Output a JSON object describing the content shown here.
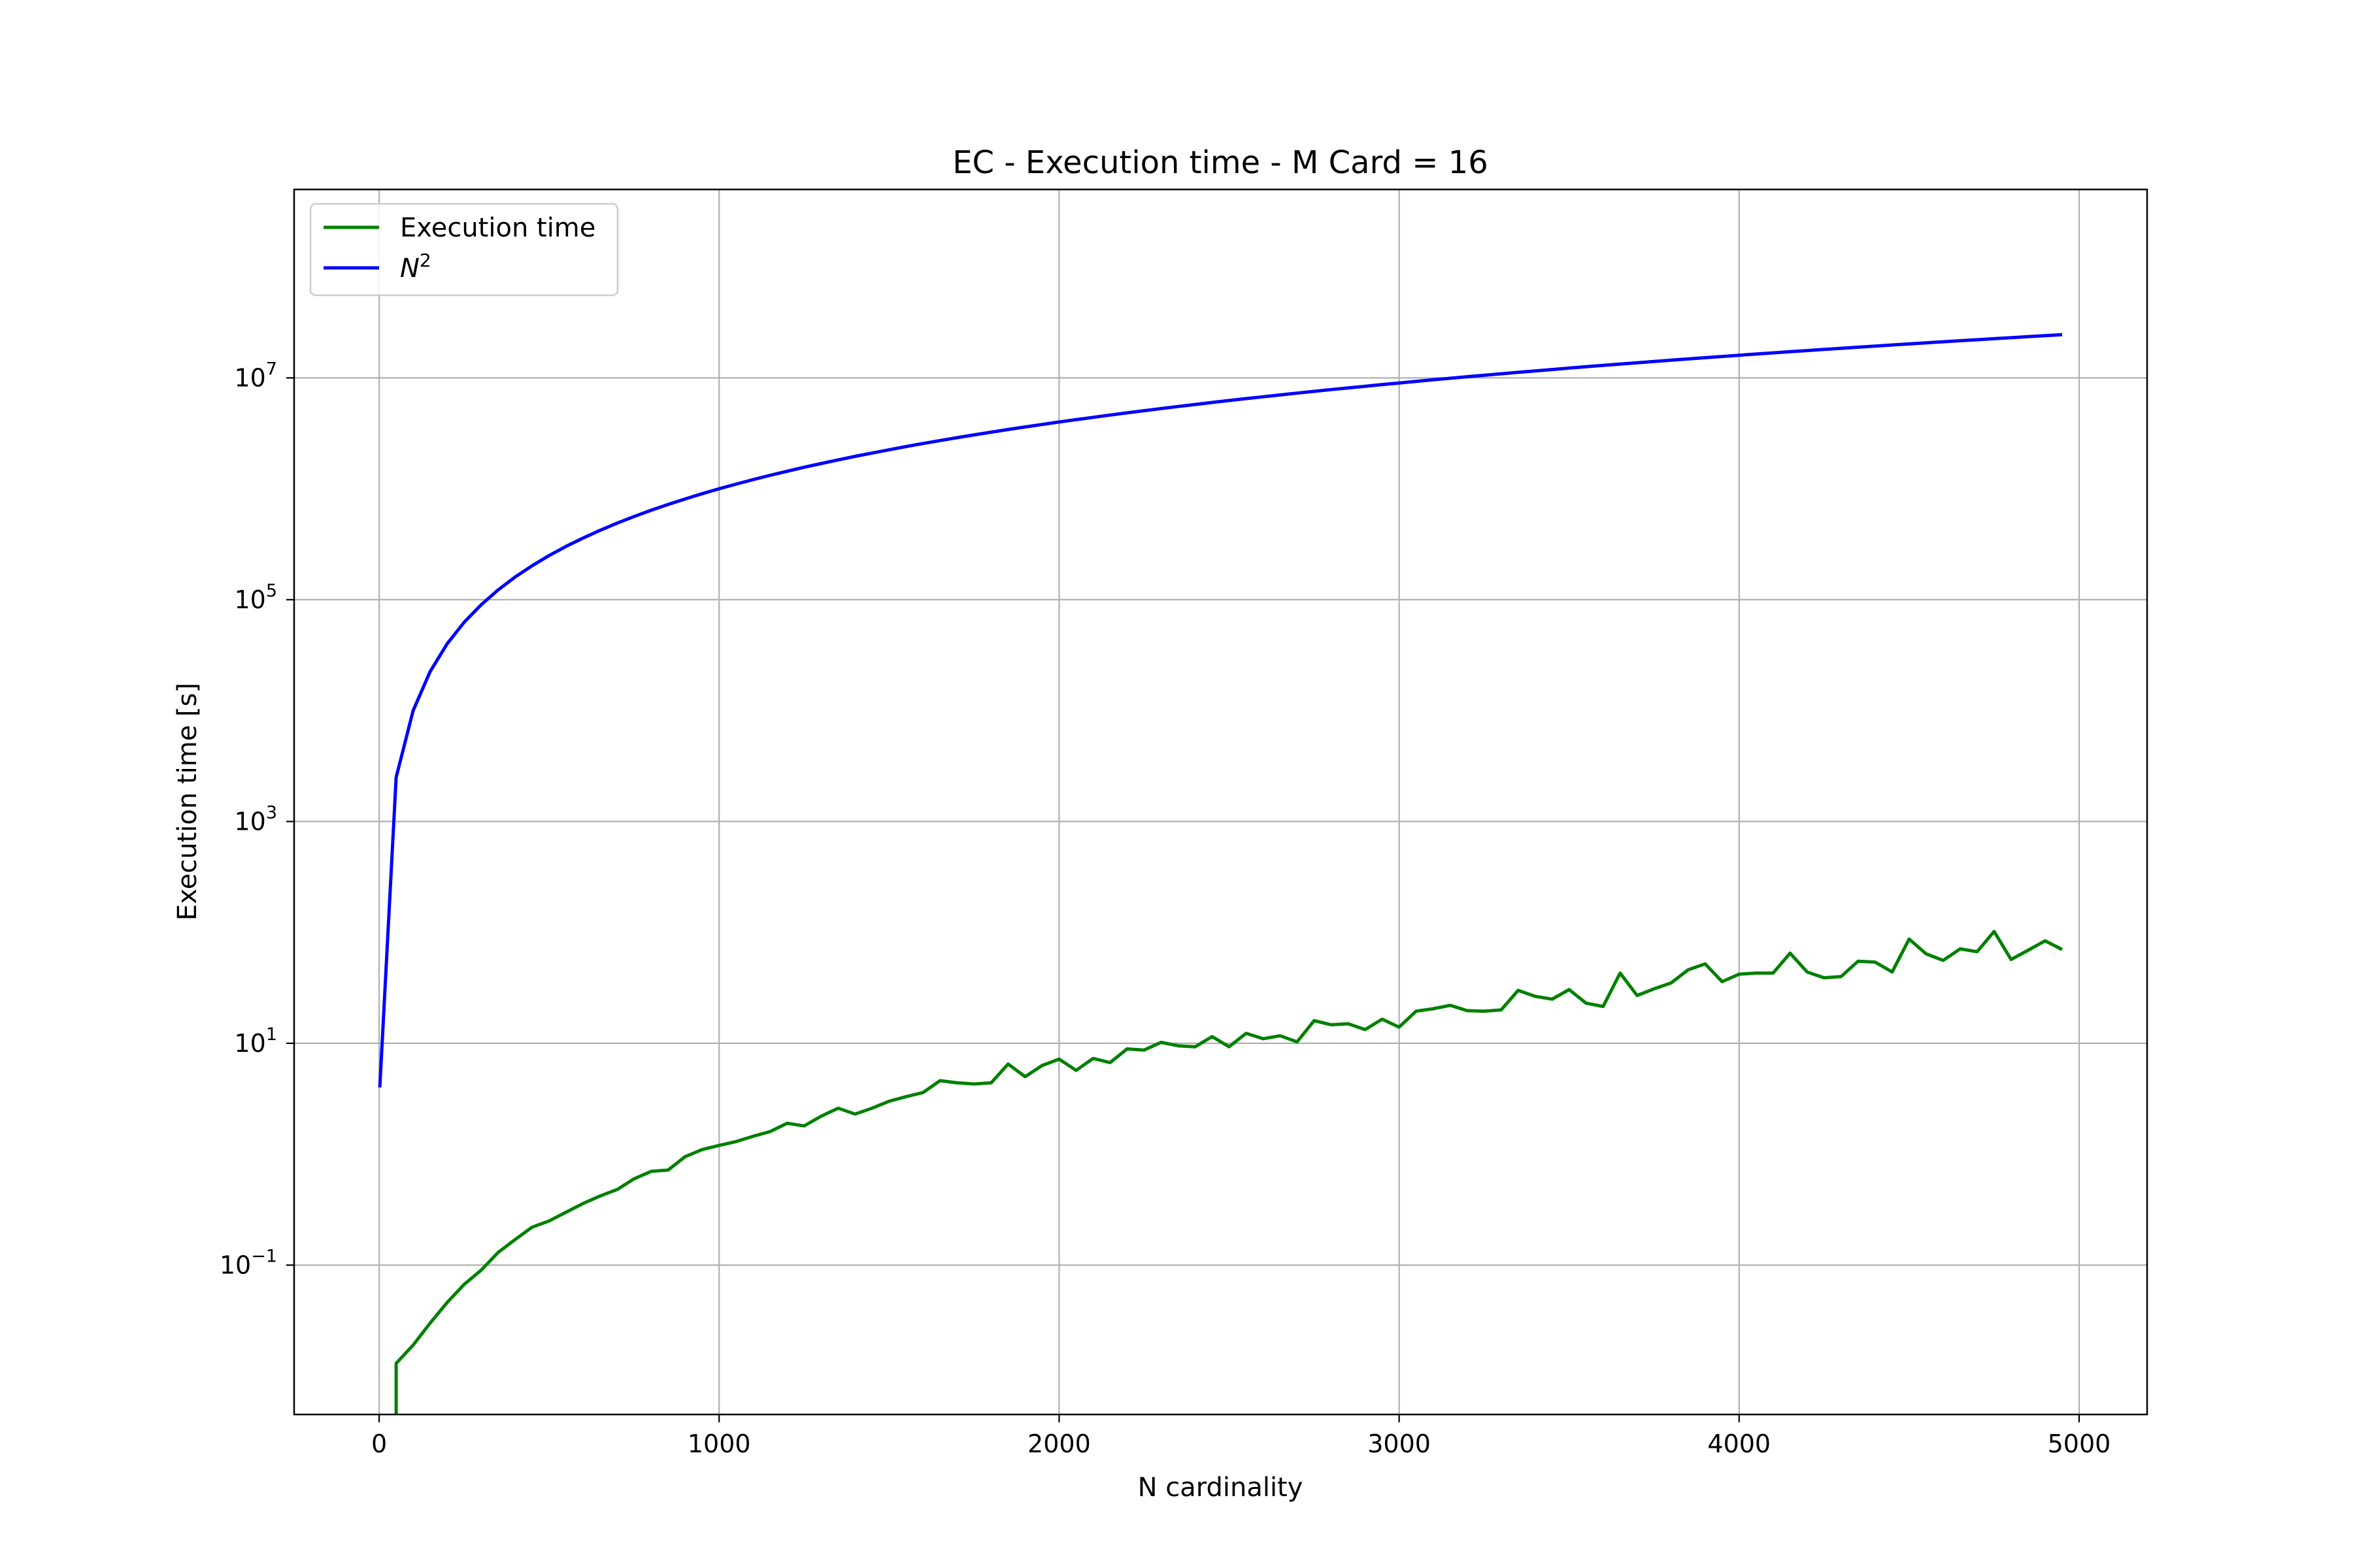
{
  "chart_data": {
    "type": "line",
    "title": "EC - Execution time - M Card = 16",
    "xlabel": "N cardinality",
    "ylabel": "Execution time [s]",
    "xlim": [
      -250,
      5200
    ],
    "ylim": [
      0.0045,
      500000000
    ],
    "yscale": "log",
    "grid": true,
    "legend_position": "top-left",
    "x_ticks": [
      0,
      1000,
      2000,
      3000,
      4000,
      5000
    ],
    "x_tick_labels": [
      "0",
      "1000",
      "2000",
      "3000",
      "4000",
      "5000"
    ],
    "y_ticks": [
      {
        "value": 0.1,
        "base": "10",
        "exp": "−1"
      },
      {
        "value": 10,
        "base": "10",
        "exp": "1"
      },
      {
        "value": 1000,
        "base": "10",
        "exp": "3"
      },
      {
        "value": 100000,
        "base": "10",
        "exp": "5"
      },
      {
        "value": 10000000,
        "base": "10",
        "exp": "7"
      }
    ],
    "series": [
      {
        "name": "Execution time",
        "color": "#008000",
        "x": [
          50,
          100,
          150,
          200,
          250,
          300,
          350,
          400,
          450,
          500,
          550,
          600,
          650,
          700,
          750,
          800,
          850,
          900,
          950,
          1000,
          1050,
          1100,
          1150,
          1200,
          1250,
          1300,
          1350,
          1400,
          1450,
          1500,
          1550,
          1600,
          1650,
          1700,
          1750,
          1800,
          1850,
          1900,
          1950,
          2000,
          2050,
          2100,
          2150,
          2200,
          2250,
          2300,
          2350,
          2400,
          2450,
          2500,
          2550,
          2600,
          2650,
          2700,
          2750,
          2800,
          2850,
          2900,
          2950,
          3000,
          3050,
          3100,
          3150,
          3200,
          3250,
          3300,
          3350,
          3400,
          3450,
          3500,
          3550,
          3600,
          3650,
          3700,
          3750,
          3800,
          3850,
          3900,
          3950,
          4000,
          4050,
          4100,
          4150,
          4200,
          4250,
          4300,
          4350,
          4400,
          4450,
          4500,
          4550,
          4600,
          4650,
          4700,
          4750,
          4800,
          4850,
          4900,
          4950
        ],
        "y": [
          0.013,
          0.019,
          0.03,
          0.046,
          0.067,
          0.09,
          0.13,
          0.17,
          0.22,
          0.25,
          0.3,
          0.36,
          0.42,
          0.48,
          0.6,
          0.7,
          0.72,
          0.95,
          1.1,
          1.2,
          1.3,
          1.45,
          1.6,
          1.9,
          1.8,
          2.2,
          2.6,
          2.3,
          2.6,
          3.0,
          3.3,
          3.6,
          4.6,
          4.4,
          4.3,
          4.4,
          6.5,
          5.0,
          6.3,
          7.2,
          5.7,
          7.3,
          6.7,
          8.9,
          8.7,
          10.2,
          9.5,
          9.3,
          11.5,
          9.3,
          12.3,
          11.0,
          11.7,
          10.3,
          16.0,
          14.7,
          15.0,
          13.3,
          16.5,
          14.0,
          19.5,
          20.5,
          22.0,
          19.7,
          19.5,
          20.0,
          30.0,
          26.5,
          25.0,
          30.5,
          23.0,
          21.5,
          43.0,
          27.0,
          31.0,
          35.0,
          46.0,
          52.0,
          36.0,
          42.0,
          43.0,
          43.0,
          65.0,
          44.0,
          39.0,
          40.0,
          55.0,
          54.0,
          44.0,
          87.0,
          64.0,
          56.0,
          71.0,
          67.0,
          102.0,
          57.0,
          69.0,
          84.0,
          70.0
        ]
      },
      {
        "name": "$N^2$",
        "label_base": "N",
        "label_exp": "2",
        "color": "#0000ff",
        "function": "x^2",
        "x_start": 2,
        "x_end": 4950
      }
    ]
  }
}
